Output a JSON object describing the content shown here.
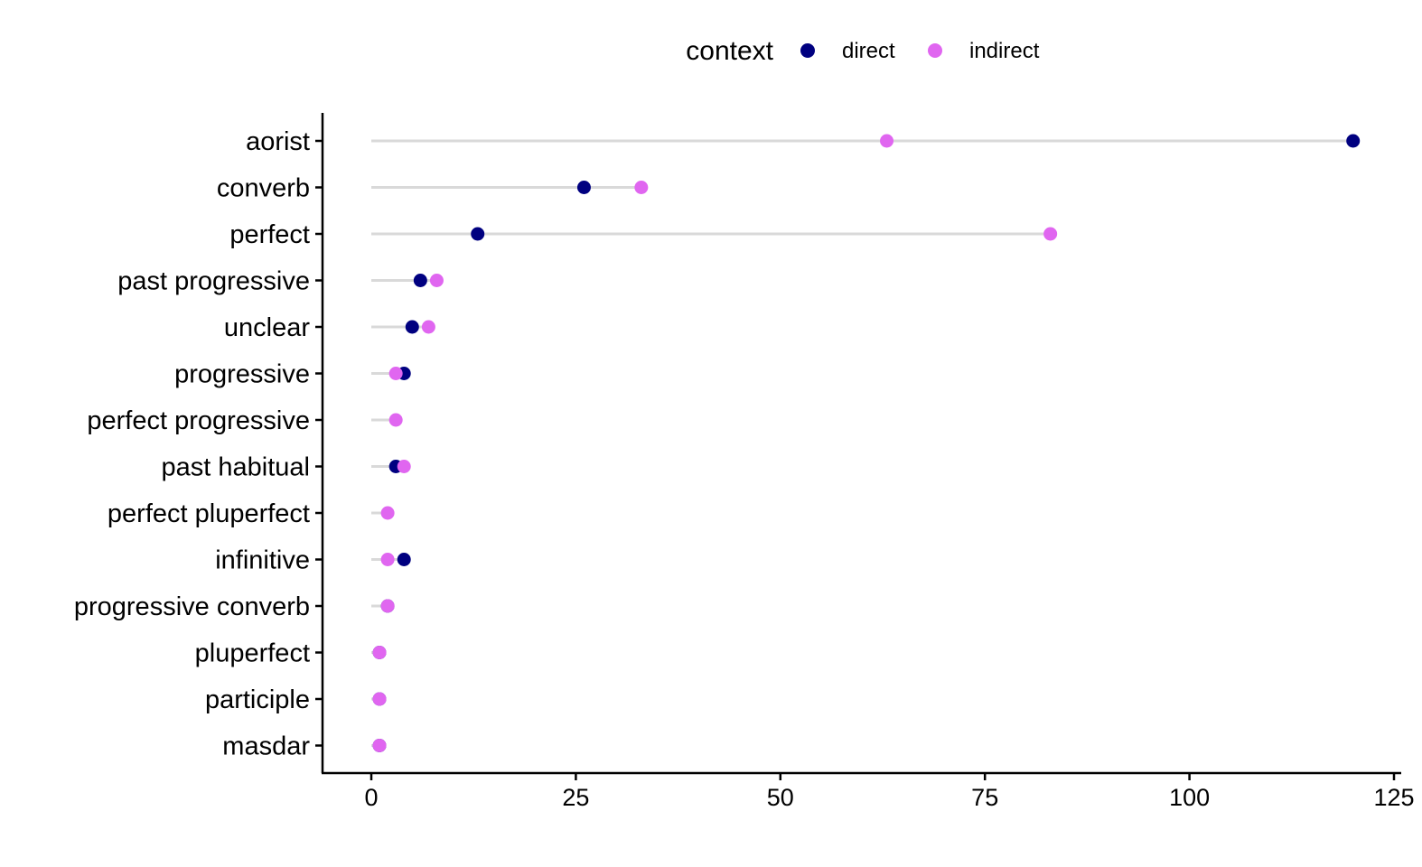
{
  "chart_data": {
    "type": "scatter",
    "title": "",
    "xlabel": "",
    "ylabel": "",
    "xlim": [
      0,
      125
    ],
    "x_ticks": [
      0,
      25,
      50,
      75,
      100,
      125
    ],
    "grid": false,
    "legend": {
      "title": "context",
      "placement": "top",
      "entries": [
        {
          "name": "direct",
          "color": "#000080"
        },
        {
          "name": "indirect",
          "color": "#E066F0"
        }
      ]
    },
    "categories": [
      "aorist",
      "converb",
      "perfect",
      "past progressive",
      "unclear",
      "progressive",
      "perfect progressive",
      "past habitual",
      "perfect pluperfect",
      "infinitive",
      "progressive converb",
      "pluperfect",
      "participle",
      "masdar"
    ],
    "series": [
      {
        "name": "direct",
        "color": "#000080",
        "values": [
          120,
          26,
          13,
          6,
          5,
          4,
          null,
          3,
          null,
          4,
          2,
          1,
          1,
          1
        ]
      },
      {
        "name": "indirect",
        "color": "#E066F0",
        "values": [
          63,
          33,
          83,
          8,
          7,
          3,
          3,
          4,
          2,
          2,
          2,
          1,
          1,
          1
        ]
      }
    ],
    "segment_color": "#D9D9D9"
  }
}
